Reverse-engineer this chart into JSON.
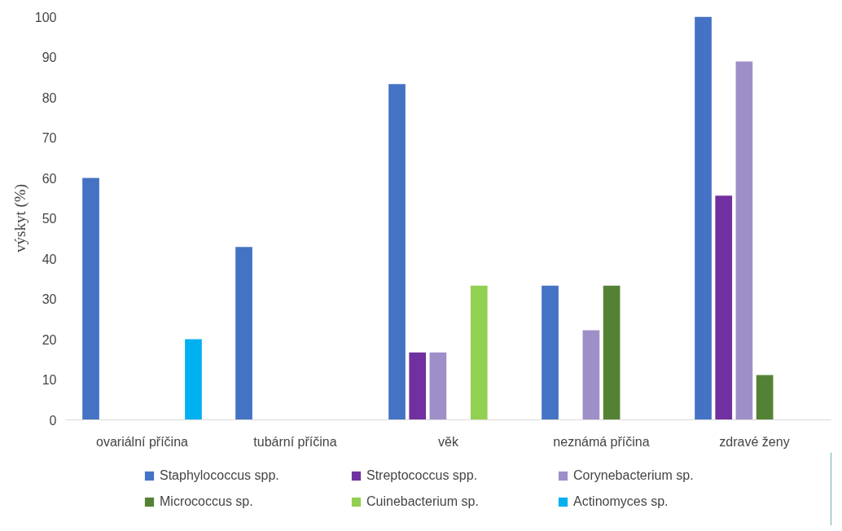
{
  "chart_data": {
    "type": "bar",
    "ylabel": "výskyt (%)",
    "categories": [
      "ovariální příčina",
      "tubární příčina",
      "věk",
      "neznámá příčina",
      "zdravé ženy"
    ],
    "series": [
      {
        "name": "Staphylococcus spp.",
        "color": "#4472c4",
        "values": [
          60,
          42.9,
          83.3,
          33.3,
          100
        ]
      },
      {
        "name": "Streptococcus spp.",
        "color": "#7030a0",
        "values": [
          null,
          null,
          16.7,
          null,
          55.6
        ]
      },
      {
        "name": "Corynebacterium sp.",
        "color": "#9e8fc8",
        "values": [
          null,
          null,
          16.7,
          22.2,
          88.9
        ]
      },
      {
        "name": "Micrococcus sp.",
        "color": "#548235",
        "values": [
          null,
          null,
          null,
          33.3,
          11.1
        ]
      },
      {
        "name": "Cuinebacterium sp.",
        "color": "#92d050",
        "values": [
          null,
          null,
          33.3,
          null,
          null
        ]
      },
      {
        "name": "Actinomyces sp.",
        "color": "#00b0f0",
        "values": [
          20,
          null,
          null,
          null,
          null
        ]
      }
    ],
    "ylim": [
      0,
      100
    ],
    "yticks": [
      0,
      10,
      20,
      30,
      40,
      50,
      60,
      70,
      80,
      90,
      100
    ],
    "grid": false,
    "legend": "bottom"
  }
}
